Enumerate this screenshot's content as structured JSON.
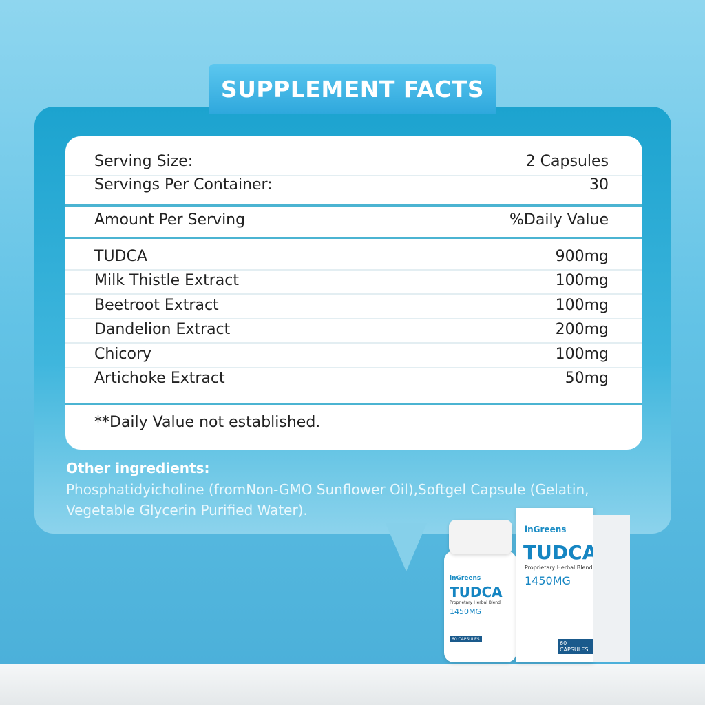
{
  "title": "SUPPLEMENT FACTS",
  "serving": [
    [
      "Serving Size:",
      "2 Capsules"
    ],
    [
      "Servings Per Container:",
      "30"
    ]
  ],
  "header": [
    "Amount Per Serving",
    "%Daily Value"
  ],
  "ingredients": [
    [
      "TUDCA",
      "900mg"
    ],
    [
      "Milk Thistle Extract",
      "100mg"
    ],
    [
      "Beetroot Extract",
      "100mg"
    ],
    [
      "Dandelion Extract",
      "200mg"
    ],
    [
      "Chicory",
      "100mg"
    ],
    [
      "Artichoke Extract",
      "50mg"
    ]
  ],
  "footnote": "**Daily Value not established.",
  "other_ingredients": {
    "heading": "Other ingredients:",
    "text": "Phosphatidyicholine (fromNon-GMO Sunflower Oil),Softgel Capsule (Gelatin, Vegetable Glycerin Purified Water)."
  },
  "product": {
    "brand": "inGreens",
    "name": "TUDCA",
    "blend": "Proprietary Herbal Blend",
    "dose": "1450MG",
    "count": "60 CAPSULES"
  }
}
